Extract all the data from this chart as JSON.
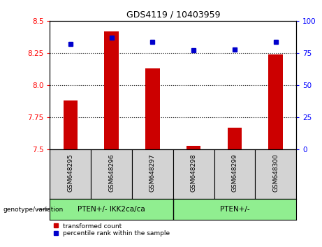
{
  "title": "GDS4119 / 10403959",
  "samples": [
    "GSM648295",
    "GSM648296",
    "GSM648297",
    "GSM648298",
    "GSM648299",
    "GSM648300"
  ],
  "transformed_counts": [
    7.88,
    8.42,
    8.13,
    7.53,
    7.67,
    8.24
  ],
  "percentile_ranks": [
    82,
    87,
    84,
    77,
    78,
    84
  ],
  "ylim_left": [
    7.5,
    8.5
  ],
  "ylim_right": [
    0,
    100
  ],
  "yticks_left": [
    7.5,
    7.75,
    8.0,
    8.25,
    8.5
  ],
  "yticks_right": [
    0,
    25,
    50,
    75,
    100
  ],
  "hlines": [
    7.75,
    8.0,
    8.25
  ],
  "group1_label": "PTEN+/- IKK2ca/ca",
  "group1_indices": [
    0,
    1,
    2
  ],
  "group2_label": "PTEN+/-",
  "group2_indices": [
    3,
    4,
    5
  ],
  "group_bg_color": "#90EE90",
  "sample_bg_color": "#d3d3d3",
  "bar_color": "#cc0000",
  "dot_color": "#0000cc",
  "bar_width": 0.35,
  "legend_labels": [
    "transformed count",
    "percentile rank within the sample"
  ],
  "genotype_label": "genotype/variation"
}
